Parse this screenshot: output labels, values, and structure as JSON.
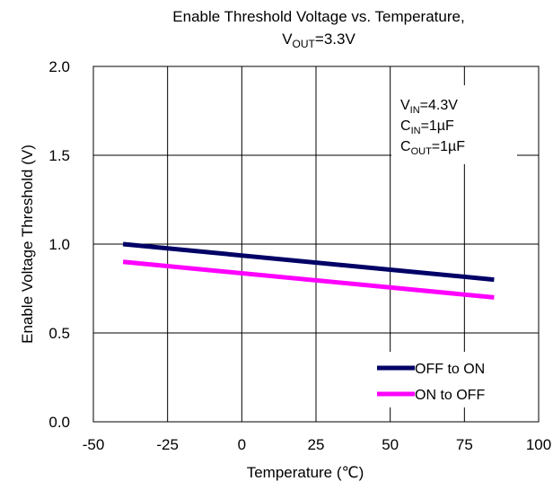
{
  "chart_data": {
    "type": "line",
    "title_line1": "Enable Threshold Voltage vs. Temperature,",
    "title_line2": {
      "v": "V",
      "sub": "OUT",
      "rest": "=3.3V"
    },
    "xlabel": "Temperature (℃)",
    "ylabel": "Enable Voltage Threshold  (V)",
    "xlim": [
      -50,
      100
    ],
    "ylim": [
      0.0,
      2.0
    ],
    "x_ticks": [
      "-50",
      "-25",
      "0",
      "25",
      "50",
      "75",
      "100"
    ],
    "y_ticks": [
      "0.0",
      "0.5",
      "1.0",
      "1.5",
      "2.0"
    ],
    "x_tick_values": [
      -50,
      -25,
      0,
      25,
      50,
      75,
      100
    ],
    "y_tick_values": [
      0.0,
      0.5,
      1.0,
      1.5,
      2.0
    ],
    "grid": true,
    "legend_position": "bottom-right",
    "conditions": [
      {
        "main": "V",
        "sub": "IN",
        "rest": "=4.3V"
      },
      {
        "main": "C",
        "sub": "IN",
        "rest": "=1µF"
      },
      {
        "main": "C",
        "sub": "OUT",
        "rest": "=1µF"
      }
    ],
    "series": [
      {
        "name": "OFF to ON",
        "color": "#000066",
        "x": [
          -40,
          85
        ],
        "y": [
          1.0,
          0.8
        ]
      },
      {
        "name": "ON to OFF",
        "color": "#ff00ff",
        "x": [
          -40,
          85
        ],
        "y": [
          0.9,
          0.7
        ]
      }
    ]
  }
}
